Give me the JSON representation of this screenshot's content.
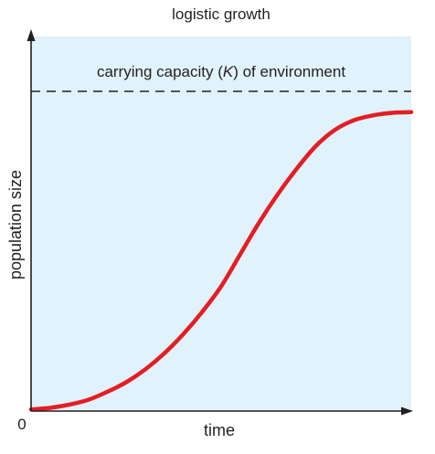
{
  "chart_data": {
    "type": "line",
    "title": "logistic growth",
    "xlabel": "time",
    "ylabel": "population size",
    "x_origin_label": "0",
    "xlim": [
      0,
      100
    ],
    "ylim": [
      0,
      100
    ],
    "grid": false,
    "background_color": "#e0f2fb",
    "axis_color": "#231f20",
    "series": [
      {
        "color": "#e31e24",
        "x": [
          0,
          5,
          10,
          15,
          20,
          25,
          30,
          35,
          40,
          45,
          50,
          55,
          60,
          65,
          70,
          75,
          80,
          85,
          90,
          95,
          100
        ],
        "y": [
          0.5,
          1,
          2,
          3.5,
          6,
          9,
          13,
          18,
          24,
          31,
          39,
          49,
          59,
          68,
          76,
          83,
          88,
          91,
          92.5,
          93.3,
          93.5
        ]
      }
    ],
    "reference_line": {
      "label_prefix": "carrying capacity (",
      "label_symbol": "K",
      "label_suffix": ") of environment",
      "y": 100,
      "style": "dashed"
    }
  }
}
